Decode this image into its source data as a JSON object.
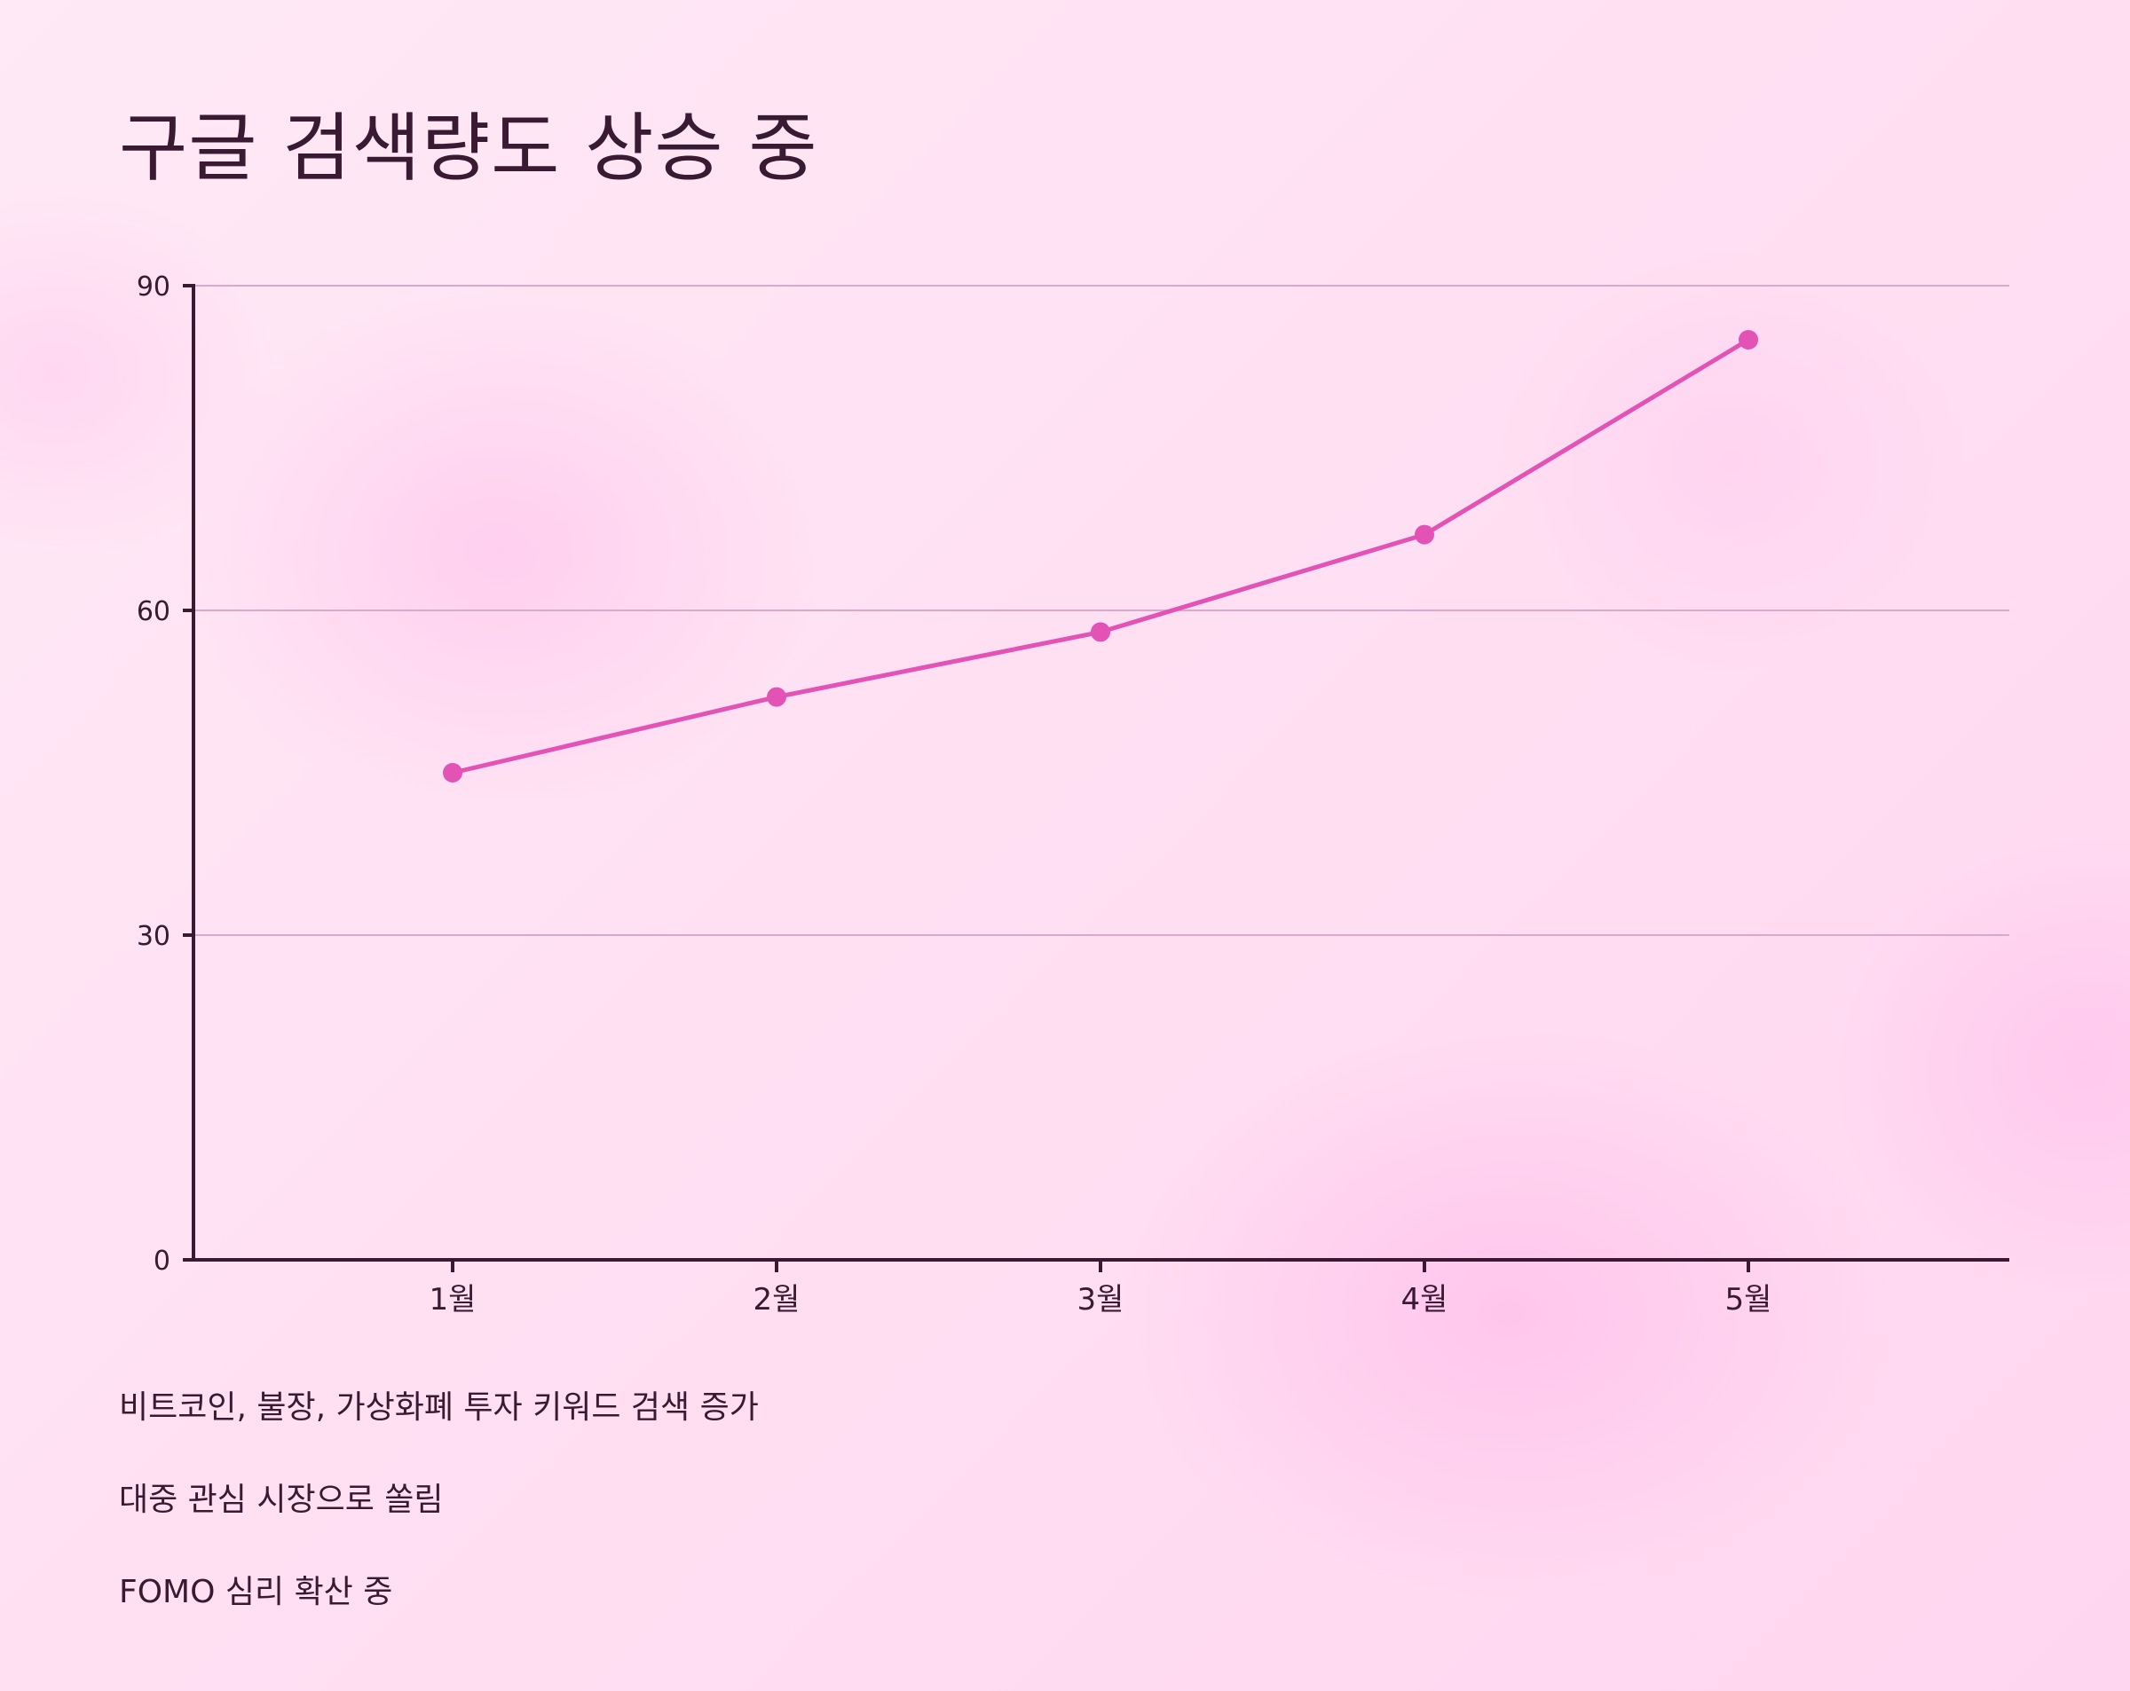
{
  "title": "구글 검색량도 상승 중",
  "chart_data": {
    "type": "line",
    "categories": [
      "1월",
      "2월",
      "3월",
      "4월",
      "5월"
    ],
    "series": [
      {
        "values": [
          45,
          52,
          58,
          67,
          85
        ]
      }
    ],
    "ylim": [
      0,
      90
    ],
    "yticks": [
      0,
      30,
      60,
      90
    ],
    "grid": true,
    "colors": {
      "line": "#e352b5",
      "axis": "#3a1a33",
      "grid": "#d9a9cb",
      "text": "#3a1a33"
    }
  },
  "notes": [
    "비트코인, 불장, 가상화폐 투자 키워드 검색 증가",
    "대중 관심 시장으로 쏠림",
    "FOMO 심리 확산 중"
  ]
}
